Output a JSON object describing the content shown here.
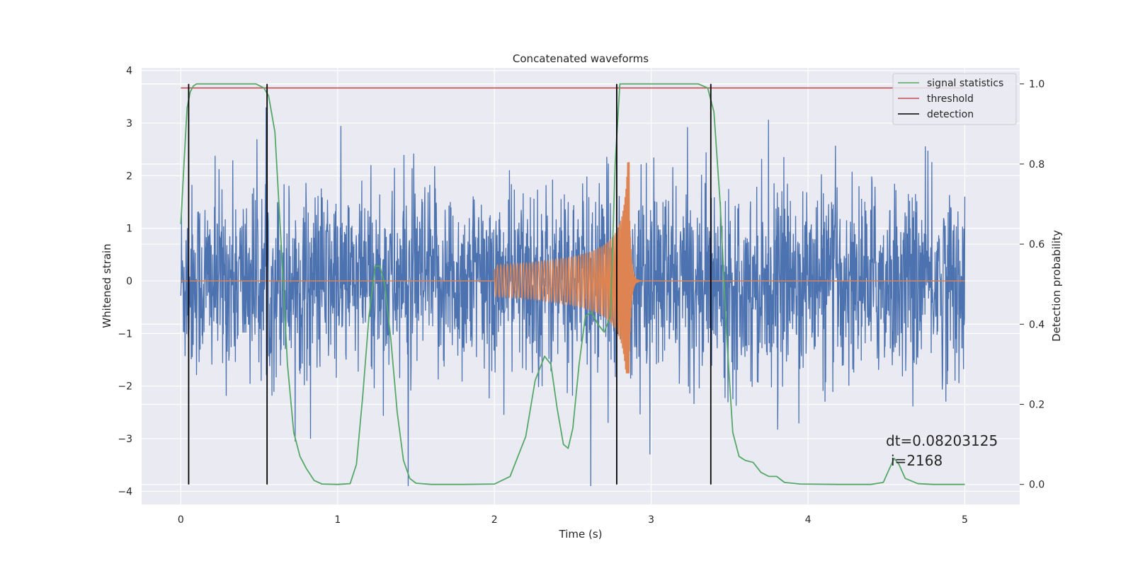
{
  "chart_data": {
    "type": "line",
    "title": "Concatenated waveforms",
    "xlabel": "Time (s)",
    "ylabel": "Whitened strain",
    "y2label": "Detection probability",
    "xlim": [
      -0.25,
      5.35
    ],
    "ylim": [
      -4.25,
      4.05
    ],
    "y2lim": [
      -0.05,
      1.04
    ],
    "x_ticks": [
      0,
      1,
      2,
      3,
      4,
      5
    ],
    "y_ticks": [
      -4,
      -3,
      -2,
      -1,
      0,
      1,
      2,
      3,
      4
    ],
    "y2_ticks": [
      0.0,
      0.2,
      0.4,
      0.6,
      0.8,
      1.0
    ],
    "x_tick_labels": [
      "0",
      "1",
      "2",
      "3",
      "4",
      "5"
    ],
    "y_tick_labels": [
      "−4",
      "−3",
      "−2",
      "−1",
      "0",
      "1",
      "2",
      "3",
      "4"
    ],
    "y2_tick_labels": [
      "0.0",
      "0.2",
      "0.4",
      "0.6",
      "0.8",
      "1.0"
    ],
    "grid": true,
    "legend_position": "top-right",
    "colors": {
      "strain": "#4c72b0",
      "template": "#dd8452",
      "signal_statistics": "#55a868",
      "threshold": "#c44e52",
      "detection": "#000000",
      "background": "#eaeaf2",
      "grid": "#ffffff"
    },
    "legend": [
      "signal statistics",
      "threshold",
      "detection"
    ],
    "threshold": 0.99,
    "detections": [
      0.05,
      0.55,
      2.78,
      3.38
    ],
    "annotation": [
      "dt=0.08203125",
      "i=2168"
    ],
    "strain_noise": {
      "x_range": [
        0,
        5
      ],
      "spread": 0.9,
      "max_abs": 3.3,
      "min": -3.9
    },
    "template_chirp": {
      "start": 2.0,
      "merger": 2.86,
      "end": 3.0,
      "peak": 2.25,
      "min": -1.75
    },
    "signal_statistics": {
      "x": [
        0,
        0.02,
        0.04,
        0.06,
        0.08,
        0.1,
        0.15,
        0.2,
        0.3,
        0.4,
        0.48,
        0.53,
        0.56,
        0.6,
        0.64,
        0.68,
        0.72,
        0.76,
        0.8,
        0.85,
        0.9,
        1.0,
        1.08,
        1.12,
        1.16,
        1.2,
        1.24,
        1.27,
        1.3,
        1.34,
        1.38,
        1.42,
        1.46,
        1.5,
        1.6,
        1.8,
        2.0,
        2.1,
        2.2,
        2.26,
        2.32,
        2.36,
        2.4,
        2.44,
        2.47,
        2.5,
        2.54,
        2.58,
        2.62,
        2.66,
        2.7,
        2.74,
        2.77,
        2.8,
        2.85,
        3.0,
        3.2,
        3.3,
        3.36,
        3.4,
        3.44,
        3.48,
        3.52,
        3.56,
        3.6,
        3.65,
        3.7,
        3.75,
        3.8,
        3.85,
        3.95,
        4.2,
        4.4,
        4.48,
        4.52,
        4.55,
        4.58,
        4.62,
        4.7,
        4.8,
        5.0
      ],
      "y": [
        0.65,
        0.8,
        0.94,
        0.98,
        0.995,
        1.0,
        1.0,
        1.0,
        1.0,
        1.0,
        1.0,
        0.99,
        0.97,
        0.88,
        0.6,
        0.3,
        0.13,
        0.07,
        0.04,
        0.01,
        0.001,
        0.0,
        0.002,
        0.05,
        0.22,
        0.42,
        0.545,
        0.545,
        0.5,
        0.36,
        0.18,
        0.06,
        0.015,
        0.003,
        0.0,
        0.0,
        0.001,
        0.02,
        0.12,
        0.26,
        0.32,
        0.3,
        0.19,
        0.1,
        0.09,
        0.14,
        0.3,
        0.42,
        0.43,
        0.4,
        0.38,
        0.42,
        0.8,
        1.0,
        1.0,
        1.0,
        1.0,
        1.0,
        0.99,
        0.93,
        0.7,
        0.38,
        0.13,
        0.07,
        0.06,
        0.055,
        0.03,
        0.02,
        0.02,
        0.005,
        0.001,
        0.0,
        0.0,
        0.005,
        0.04,
        0.065,
        0.05,
        0.015,
        0.002,
        0.0,
        0.0
      ]
    }
  }
}
